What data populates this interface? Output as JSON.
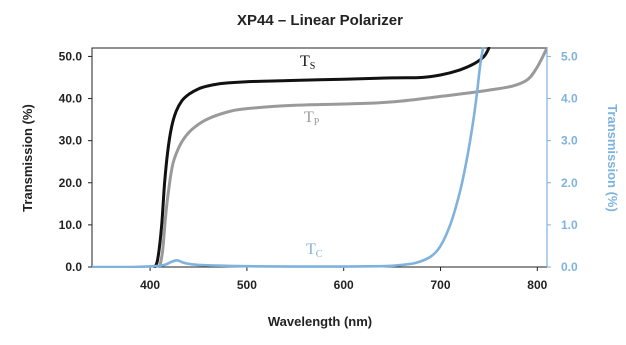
{
  "chart_data": {
    "type": "line",
    "title": "XP44 – Linear Polarizer",
    "xlabel": "Wavelength (nm)",
    "ylabel": "Transmission (%)",
    "y2label": "Transmission (%)",
    "xlim": [
      340,
      810
    ],
    "ylim": [
      0,
      52
    ],
    "y2lim": [
      0,
      5.2
    ],
    "x_ticks": [
      "400",
      "500",
      "600",
      "700",
      "800"
    ],
    "y_ticks": [
      "0.0",
      "10.0",
      "20.0",
      "30.0",
      "40.0",
      "50.0"
    ],
    "y2_ticks": [
      "0.0",
      "1.0",
      "2.0",
      "3.0",
      "4.0",
      "5.0"
    ],
    "grid": false,
    "colors": {
      "ts": "#111111",
      "tp": "#9a9a9a",
      "tc": "#7fb2dc"
    },
    "series": [
      {
        "name": "Ts",
        "label_main": "T",
        "label_sub": "S",
        "axis": "left",
        "x": [
          405,
          408,
          412,
          415,
          418,
          422,
          427,
          433,
          440,
          450,
          460,
          475,
          500,
          550,
          600,
          650,
          680,
          700,
          720,
          735,
          745,
          750
        ],
        "y": [
          0,
          2,
          10,
          20,
          27,
          33,
          37,
          39.5,
          41,
          42.3,
          43,
          43.6,
          44,
          44.3,
          44.6,
          44.9,
          45,
          45.6,
          46.8,
          48.3,
          50,
          52
        ]
      },
      {
        "name": "Tp",
        "label_main": "T",
        "label_sub": "P",
        "axis": "left",
        "x": [
          410,
          413,
          416,
          419,
          423,
          428,
          435,
          445,
          460,
          480,
          500,
          550,
          600,
          650,
          700,
          750,
          775,
          790,
          800,
          810
        ],
        "y": [
          0,
          4,
          12,
          18,
          24,
          27.5,
          30.5,
          33,
          35.2,
          36.8,
          37.6,
          38.4,
          38.7,
          39.2,
          40.5,
          42,
          43,
          44.5,
          47.5,
          52
        ]
      },
      {
        "name": "Tc",
        "label_main": "T",
        "label_sub": "C",
        "axis": "right",
        "x": [
          340,
          380,
          405,
          415,
          422,
          428,
          435,
          450,
          500,
          550,
          600,
          640,
          660,
          675,
          690,
          700,
          710,
          718,
          725,
          732,
          737,
          741,
          744
        ],
        "y": [
          0,
          0,
          0.02,
          0.05,
          0.12,
          0.16,
          0.1,
          0.05,
          0.02,
          0.01,
          0.01,
          0.02,
          0.05,
          0.1,
          0.25,
          0.5,
          1.0,
          1.6,
          2.3,
          3.2,
          4.0,
          4.8,
          5.2
        ]
      }
    ]
  }
}
